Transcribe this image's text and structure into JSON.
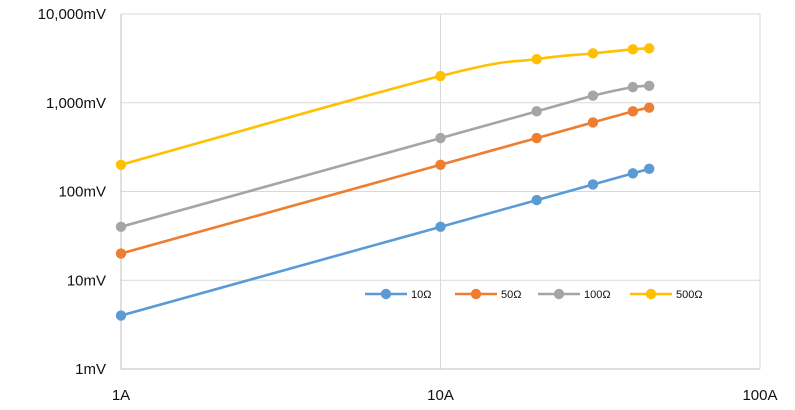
{
  "chart_data": {
    "type": "line",
    "title": "",
    "xlabel": "",
    "ylabel": "",
    "x_scale": "log",
    "y_scale": "log",
    "xlim": [
      1,
      100
    ],
    "ylim": [
      1,
      10000
    ],
    "x_ticks": [
      {
        "value": 1,
        "label": "1A"
      },
      {
        "value": 10,
        "label": "10A"
      },
      {
        "value": 100,
        "label": "100A"
      }
    ],
    "y_ticks": [
      {
        "value": 1,
        "label": "1mV"
      },
      {
        "value": 10,
        "label": "10mV"
      },
      {
        "value": 100,
        "label": "100mV"
      },
      {
        "value": 1000,
        "label": "1,000mV"
      },
      {
        "value": 10000,
        "label": "10,000mV"
      }
    ],
    "grid": "major gridlines on both axes",
    "legend_position": "inside, lower right",
    "x": [
      1,
      10,
      20,
      30,
      40,
      45
    ],
    "series": [
      {
        "name": "10Ω",
        "color": "#5b9bd5",
        "values": [
          4,
          40,
          80,
          120,
          160,
          180
        ]
      },
      {
        "name": "50Ω",
        "color": "#ed7d31",
        "values": [
          20,
          200,
          400,
          600,
          800,
          880
        ]
      },
      {
        "name": "100Ω",
        "color": "#a5a5a5",
        "values": [
          40,
          400,
          800,
          1200,
          1500,
          1550
        ]
      },
      {
        "name": "500Ω",
        "color": "#ffc000",
        "values": [
          200,
          2000,
          3100,
          3600,
          4000,
          4100
        ]
      }
    ]
  }
}
